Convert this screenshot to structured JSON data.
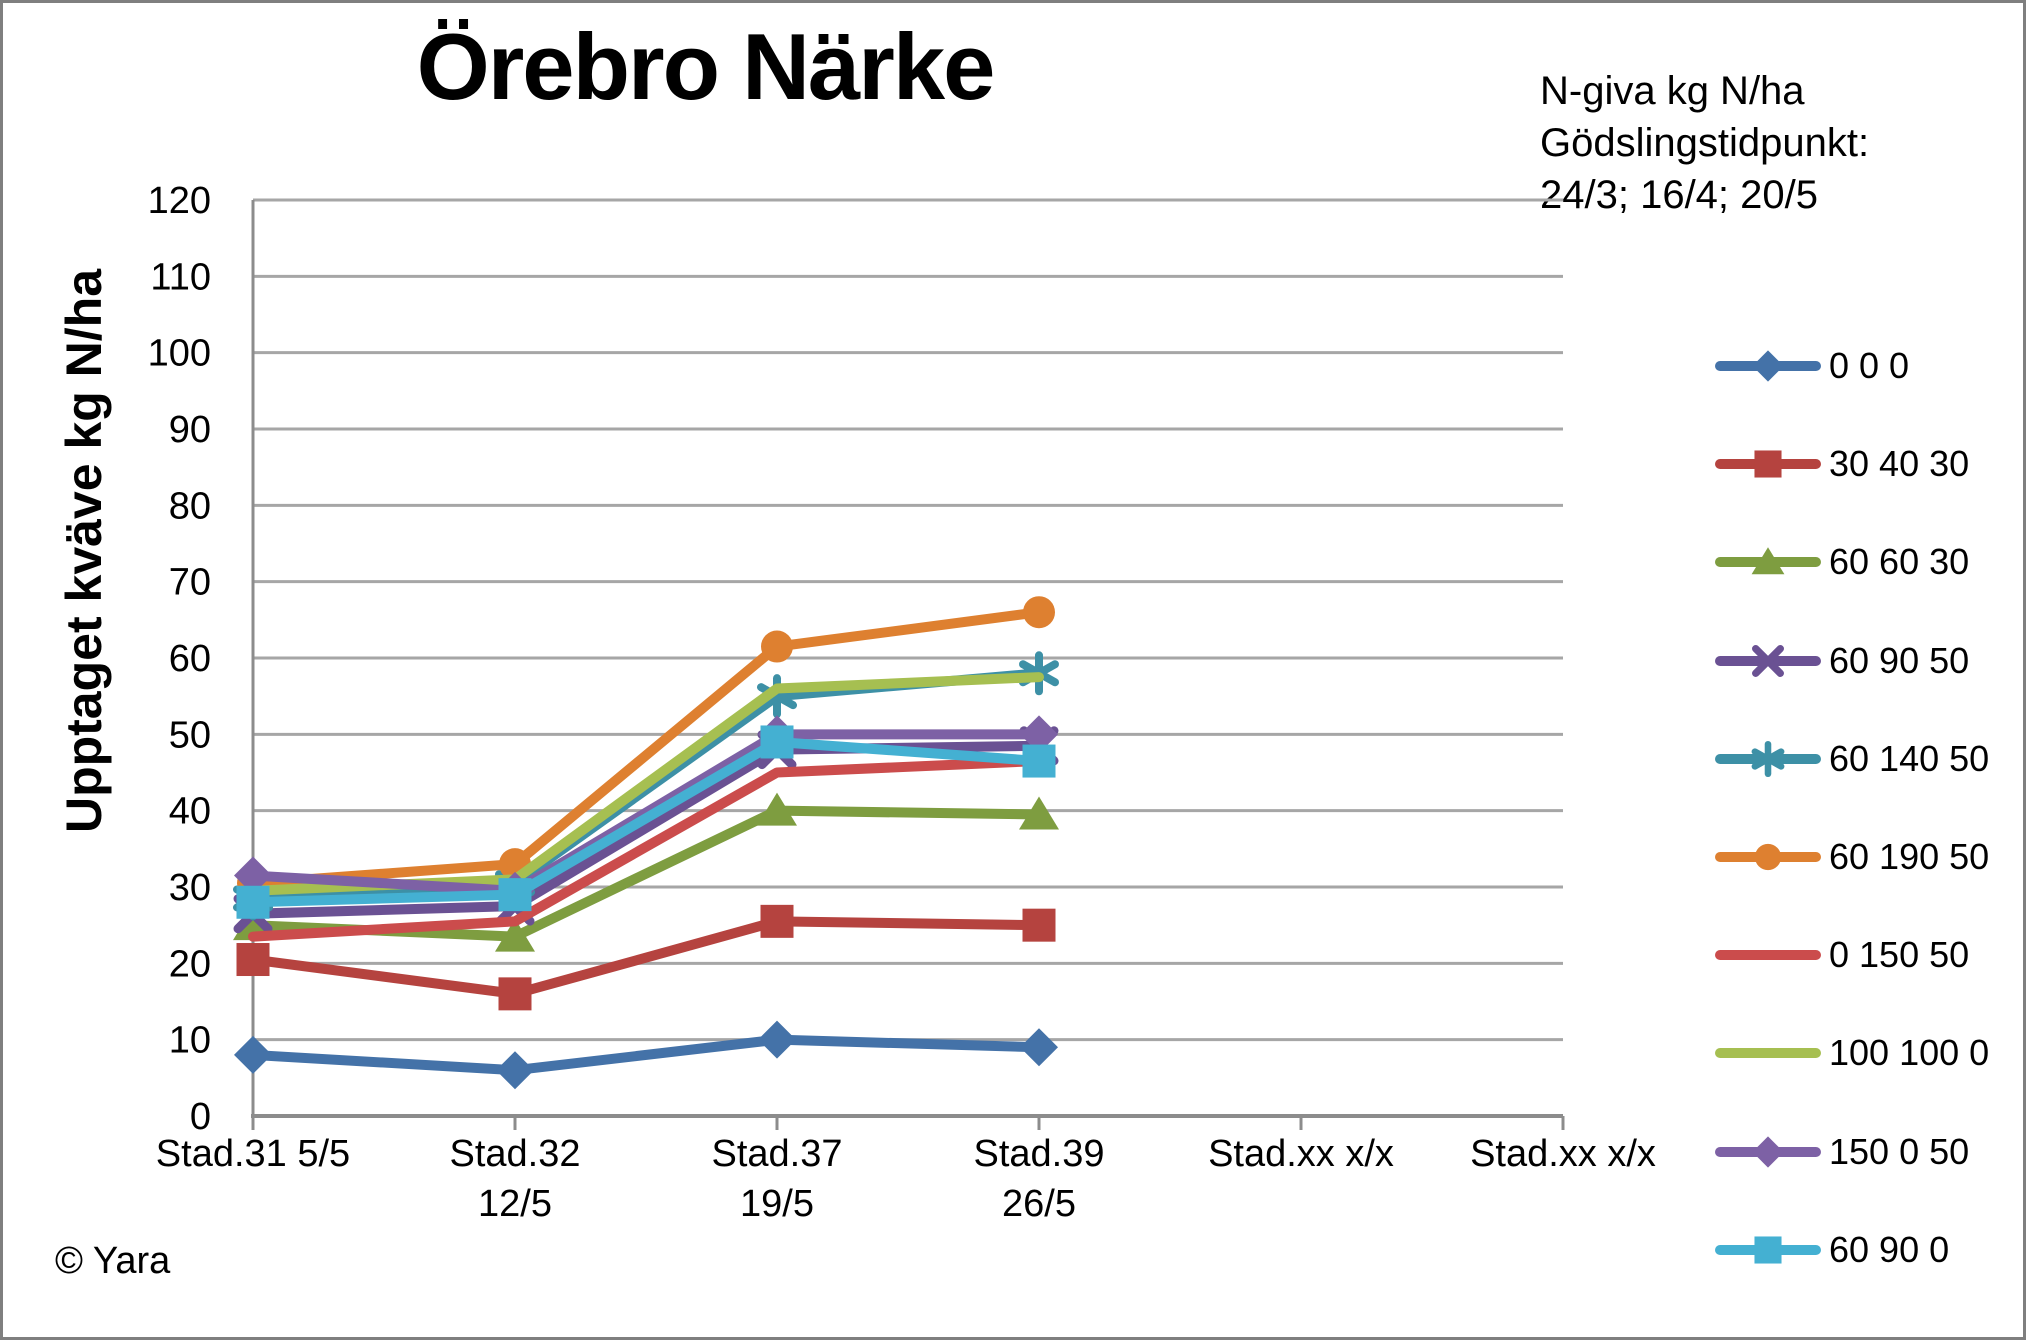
{
  "title": "Örebro Närke",
  "annotation": {
    "line1": "N-giva kg N/ha",
    "line2": "Gödslingstidpunkt:",
    "line3": "24/3; 16/4; 20/5"
  },
  "copyright": "© Yara",
  "chart_data": {
    "type": "line",
    "title": "Örebro Närke",
    "xlabel": "",
    "ylabel": "Upptaget kväve kg N/ha",
    "ylim": [
      0,
      120
    ],
    "ytick_step": 10,
    "grid": true,
    "legend_position": "right",
    "legend_title": "N-giva kg N/ha Gödslingstidpunkt: 24/3; 16/4; 20/5",
    "categories": [
      [
        "Stad.31 5/5"
      ],
      [
        "Stad.32",
        "12/5"
      ],
      [
        "Stad.37",
        "19/5"
      ],
      [
        "Stad.39",
        "26/5"
      ],
      [
        "Stad.xx x/x"
      ],
      [
        "Stad.xx x/x"
      ]
    ],
    "series": [
      {
        "name": "0 0 0",
        "color": "#4472A8",
        "marker": "diamond",
        "values": [
          8,
          6,
          10,
          9
        ]
      },
      {
        "name": "30 40 30",
        "color": "#B5433F",
        "marker": "square",
        "values": [
          20.5,
          16,
          25.5,
          25
        ]
      },
      {
        "name": "60 60 30",
        "color": "#7E9D40",
        "marker": "triangle",
        "values": [
          25,
          23.5,
          40,
          39.5
        ]
      },
      {
        "name": "60 90 50",
        "color": "#6A5193",
        "marker": "x",
        "values": [
          26.5,
          27.5,
          48,
          48.5
        ]
      },
      {
        "name": "60 140 50",
        "color": "#3D90A6",
        "marker": "star",
        "values": [
          28.5,
          30.5,
          55,
          58
        ]
      },
      {
        "name": "60 190 50",
        "color": "#DE8030",
        "marker": "circle",
        "values": [
          30.5,
          33,
          61.5,
          66
        ]
      },
      {
        "name": "0 150 50",
        "color": "#CB4C4C",
        "marker": "none",
        "values": [
          23.5,
          25.5,
          45,
          46.5
        ]
      },
      {
        "name": "100 100 0",
        "color": "#A6BF51",
        "marker": "none",
        "values": [
          29.5,
          31,
          56,
          57.5
        ]
      },
      {
        "name": "150 0 50",
        "color": "#7D61A5",
        "marker": "diamond",
        "values": [
          31.5,
          29.5,
          50,
          50
        ]
      },
      {
        "name": "60 90 0",
        "color": "#44B0D2",
        "marker": "square",
        "values": [
          28,
          29,
          49,
          46.5
        ]
      }
    ]
  }
}
